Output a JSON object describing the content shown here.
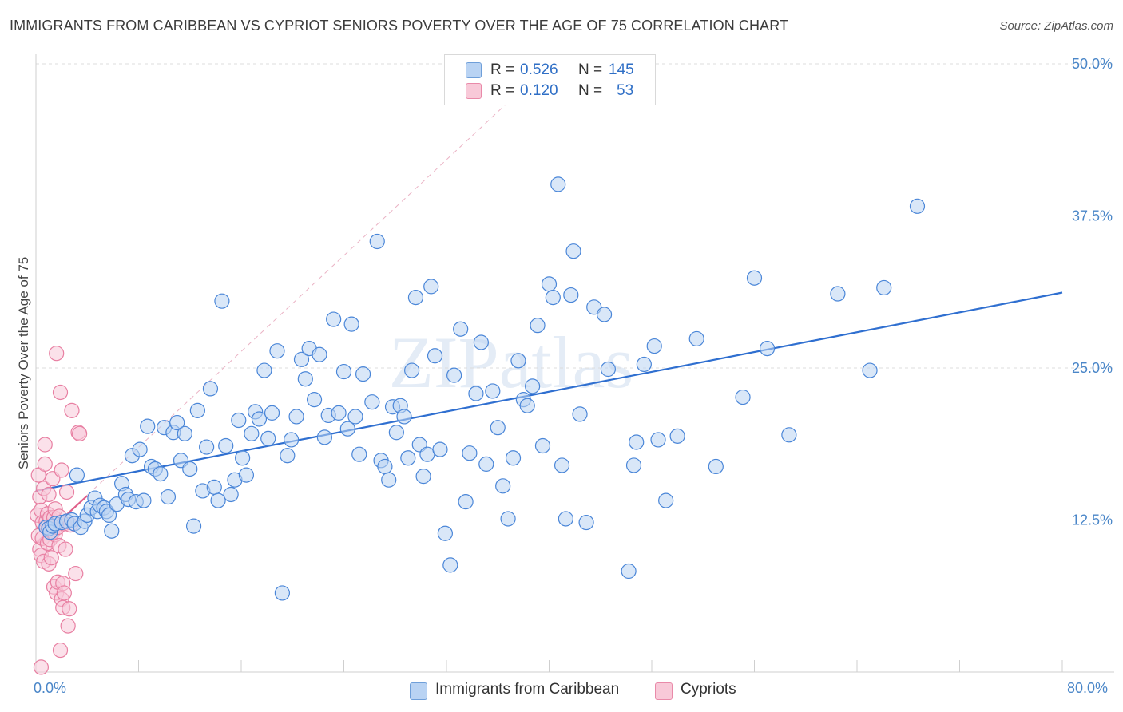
{
  "title": "IMMIGRANTS FROM CARIBBEAN VS CYPRIOT SENIORS POVERTY OVER THE AGE OF 75 CORRELATION CHART",
  "source": "Source: ZipAtlas.com",
  "watermark": "ZIPatlas",
  "legend": {
    "rows": [
      {
        "r_label": "R =",
        "r_value": "0.526",
        "n_label": "N =",
        "n_value": "145",
        "color": "#9ec3f0"
      },
      {
        "r_label": "R =",
        "r_value": "0.120",
        "n_label": "N =",
        "n_value": "53",
        "color": "#f5b5c8"
      }
    ]
  },
  "bottom_legend": {
    "caribbean": "Immigrants from Caribbean",
    "cypriots": "Cypriots"
  },
  "chart_data": {
    "type": "scatter",
    "title": "IMMIGRANTS FROM CARIBBEAN VS CYPRIOT SENIORS POVERTY OVER THE AGE OF 75 CORRELATION CHART",
    "xlabel": "",
    "ylabel": "Seniors Poverty Over the Age of 75",
    "xlim": [
      0,
      80
    ],
    "ylim": [
      0,
      50
    ],
    "x_tick_labels": [
      "0.0%",
      "80.0%"
    ],
    "y_ticks": [
      12.5,
      25.0,
      37.5,
      50.0
    ],
    "y_tick_labels": [
      "12.5%",
      "25.0%",
      "37.5%",
      "50.0%"
    ],
    "grid": true,
    "series": [
      {
        "name": "Immigrants from Caribbean",
        "color": "#4a86d8",
        "fill": "#b9d3f3",
        "R": 0.526,
        "N": 145,
        "trend": {
          "x": [
            0,
            80
          ],
          "y": [
            14.9,
            31.2
          ],
          "style": "solid"
        },
        "points": [
          [
            0.8,
            11.9
          ],
          [
            1.0,
            11.8
          ],
          [
            1.1,
            11.5
          ],
          [
            1.3,
            12.0
          ],
          [
            1.5,
            12.2
          ],
          [
            2.0,
            12.3
          ],
          [
            2.4,
            12.4
          ],
          [
            2.8,
            12.5
          ],
          [
            3.0,
            12.2
          ],
          [
            3.2,
            16.2
          ],
          [
            3.5,
            11.9
          ],
          [
            3.8,
            12.4
          ],
          [
            4.0,
            12.9
          ],
          [
            4.3,
            13.5
          ],
          [
            4.6,
            14.3
          ],
          [
            4.8,
            13.2
          ],
          [
            5.0,
            13.7
          ],
          [
            5.3,
            13.5
          ],
          [
            5.5,
            13.2
          ],
          [
            5.7,
            12.9
          ],
          [
            5.9,
            11.6
          ],
          [
            6.3,
            13.8
          ],
          [
            6.7,
            15.5
          ],
          [
            7.0,
            14.6
          ],
          [
            7.2,
            14.2
          ],
          [
            7.5,
            17.8
          ],
          [
            7.8,
            14.0
          ],
          [
            8.1,
            18.3
          ],
          [
            8.4,
            14.1
          ],
          [
            8.7,
            20.2
          ],
          [
            9.0,
            16.9
          ],
          [
            9.3,
            16.7
          ],
          [
            9.7,
            16.3
          ],
          [
            10.0,
            20.1
          ],
          [
            10.3,
            14.4
          ],
          [
            10.7,
            19.7
          ],
          [
            11.0,
            20.5
          ],
          [
            11.3,
            17.4
          ],
          [
            11.6,
            19.6
          ],
          [
            12.0,
            16.7
          ],
          [
            12.3,
            12.0
          ],
          [
            12.6,
            21.5
          ],
          [
            13.0,
            14.9
          ],
          [
            13.3,
            18.5
          ],
          [
            13.6,
            23.3
          ],
          [
            13.9,
            15.2
          ],
          [
            14.2,
            14.1
          ],
          [
            14.5,
            30.5
          ],
          [
            14.8,
            18.6
          ],
          [
            15.2,
            14.6
          ],
          [
            15.5,
            15.8
          ],
          [
            15.8,
            20.7
          ],
          [
            16.1,
            17.6
          ],
          [
            16.4,
            16.2
          ],
          [
            16.8,
            19.6
          ],
          [
            17.1,
            21.4
          ],
          [
            17.4,
            20.8
          ],
          [
            17.8,
            24.8
          ],
          [
            18.1,
            19.2
          ],
          [
            18.4,
            21.3
          ],
          [
            18.8,
            26.4
          ],
          [
            19.2,
            6.5
          ],
          [
            19.6,
            17.8
          ],
          [
            19.9,
            19.1
          ],
          [
            20.3,
            21.0
          ],
          [
            20.7,
            25.7
          ],
          [
            21.0,
            24.1
          ],
          [
            21.3,
            26.6
          ],
          [
            21.7,
            22.4
          ],
          [
            22.1,
            26.1
          ],
          [
            22.5,
            19.3
          ],
          [
            22.8,
            21.1
          ],
          [
            23.2,
            29.0
          ],
          [
            23.6,
            21.3
          ],
          [
            24.0,
            24.7
          ],
          [
            24.3,
            20.0
          ],
          [
            24.6,
            28.6
          ],
          [
            24.9,
            21.0
          ],
          [
            25.2,
            17.9
          ],
          [
            25.5,
            24.5
          ],
          [
            26.2,
            22.2
          ],
          [
            26.6,
            35.4
          ],
          [
            26.9,
            17.4
          ],
          [
            27.2,
            16.9
          ],
          [
            27.5,
            15.8
          ],
          [
            27.8,
            21.8
          ],
          [
            28.1,
            19.7
          ],
          [
            28.4,
            21.9
          ],
          [
            28.7,
            21.0
          ],
          [
            29.0,
            17.6
          ],
          [
            29.3,
            24.8
          ],
          [
            29.6,
            30.8
          ],
          [
            29.9,
            18.7
          ],
          [
            30.2,
            16.1
          ],
          [
            30.5,
            17.9
          ],
          [
            30.8,
            31.7
          ],
          [
            31.1,
            26.0
          ],
          [
            31.5,
            18.3
          ],
          [
            31.9,
            11.4
          ],
          [
            32.3,
            8.8
          ],
          [
            32.6,
            24.4
          ],
          [
            33.1,
            28.2
          ],
          [
            33.5,
            14.0
          ],
          [
            33.8,
            18.0
          ],
          [
            34.3,
            22.9
          ],
          [
            34.7,
            27.1
          ],
          [
            35.1,
            17.1
          ],
          [
            35.6,
            23.1
          ],
          [
            36.0,
            20.1
          ],
          [
            36.4,
            15.3
          ],
          [
            36.8,
            12.6
          ],
          [
            37.2,
            17.6
          ],
          [
            37.6,
            25.6
          ],
          [
            38.0,
            22.4
          ],
          [
            38.3,
            21.9
          ],
          [
            38.7,
            23.5
          ],
          [
            39.1,
            28.5
          ],
          [
            39.5,
            18.6
          ],
          [
            40.0,
            31.9
          ],
          [
            40.3,
            30.8
          ],
          [
            40.7,
            40.1
          ],
          [
            41.0,
            17.0
          ],
          [
            41.3,
            12.6
          ],
          [
            41.7,
            31.0
          ],
          [
            41.9,
            34.6
          ],
          [
            42.4,
            21.2
          ],
          [
            42.9,
            12.3
          ],
          [
            43.5,
            30.0
          ],
          [
            44.3,
            29.4
          ],
          [
            44.6,
            24.9
          ],
          [
            46.2,
            8.3
          ],
          [
            46.6,
            17.0
          ],
          [
            46.8,
            18.9
          ],
          [
            47.4,
            25.3
          ],
          [
            48.2,
            26.8
          ],
          [
            48.5,
            19.1
          ],
          [
            49.1,
            14.1
          ],
          [
            50.0,
            19.4
          ],
          [
            51.5,
            27.4
          ],
          [
            53.0,
            16.9
          ],
          [
            55.1,
            22.6
          ],
          [
            56.0,
            32.4
          ],
          [
            57.0,
            26.6
          ],
          [
            58.7,
            19.5
          ],
          [
            62.5,
            31.1
          ],
          [
            65.0,
            24.8
          ],
          [
            66.1,
            31.6
          ],
          [
            68.7,
            38.3
          ]
        ]
      },
      {
        "name": "Cypriots",
        "color": "#e87fa2",
        "fill": "#f8c9d8",
        "R": 0.12,
        "N": 53,
        "trend": {
          "x": [
            0,
            4.0
          ],
          "y": [
            10.6,
            14.5
          ],
          "style": "solid",
          "extended": {
            "x": [
              0,
              40
            ],
            "y": [
              10.6,
              50
            ],
            "style": "dashed"
          }
        },
        "points": [
          [
            0.1,
            12.9
          ],
          [
            0.2,
            16.2
          ],
          [
            0.2,
            11.2
          ],
          [
            0.3,
            10.1
          ],
          [
            0.3,
            14.4
          ],
          [
            0.4,
            9.6
          ],
          [
            0.4,
            13.3
          ],
          [
            0.5,
            12.3
          ],
          [
            0.5,
            11.0
          ],
          [
            0.6,
            15.1
          ],
          [
            0.6,
            9.1
          ],
          [
            0.7,
            18.7
          ],
          [
            0.7,
            17.1
          ],
          [
            0.8,
            11.9
          ],
          [
            0.8,
            12.4
          ],
          [
            0.9,
            13.0
          ],
          [
            0.9,
            10.6
          ],
          [
            1.0,
            8.9
          ],
          [
            1.0,
            14.6
          ],
          [
            1.1,
            12.7
          ],
          [
            1.1,
            10.9
          ],
          [
            1.2,
            9.4
          ],
          [
            1.2,
            12.0
          ],
          [
            1.3,
            15.9
          ],
          [
            1.3,
            11.5
          ],
          [
            1.4,
            12.7
          ],
          [
            1.4,
            7.0
          ],
          [
            1.5,
            11.3
          ],
          [
            1.5,
            13.4
          ],
          [
            1.6,
            26.2
          ],
          [
            1.6,
            6.5
          ],
          [
            1.7,
            11.9
          ],
          [
            1.7,
            7.4
          ],
          [
            1.8,
            10.4
          ],
          [
            1.8,
            12.8
          ],
          [
            1.9,
            23.0
          ],
          [
            1.9,
            1.8
          ],
          [
            2.0,
            16.6
          ],
          [
            2.0,
            6.0
          ],
          [
            2.1,
            5.3
          ],
          [
            2.1,
            7.3
          ],
          [
            2.2,
            12.2
          ],
          [
            2.2,
            6.5
          ],
          [
            2.3,
            10.1
          ],
          [
            2.4,
            14.8
          ],
          [
            2.5,
            3.8
          ],
          [
            2.6,
            5.2
          ],
          [
            2.7,
            12.1
          ],
          [
            2.8,
            21.5
          ],
          [
            3.1,
            8.1
          ],
          [
            3.3,
            19.7
          ],
          [
            3.4,
            19.6
          ],
          [
            0.4,
            0.4
          ]
        ]
      }
    ]
  }
}
